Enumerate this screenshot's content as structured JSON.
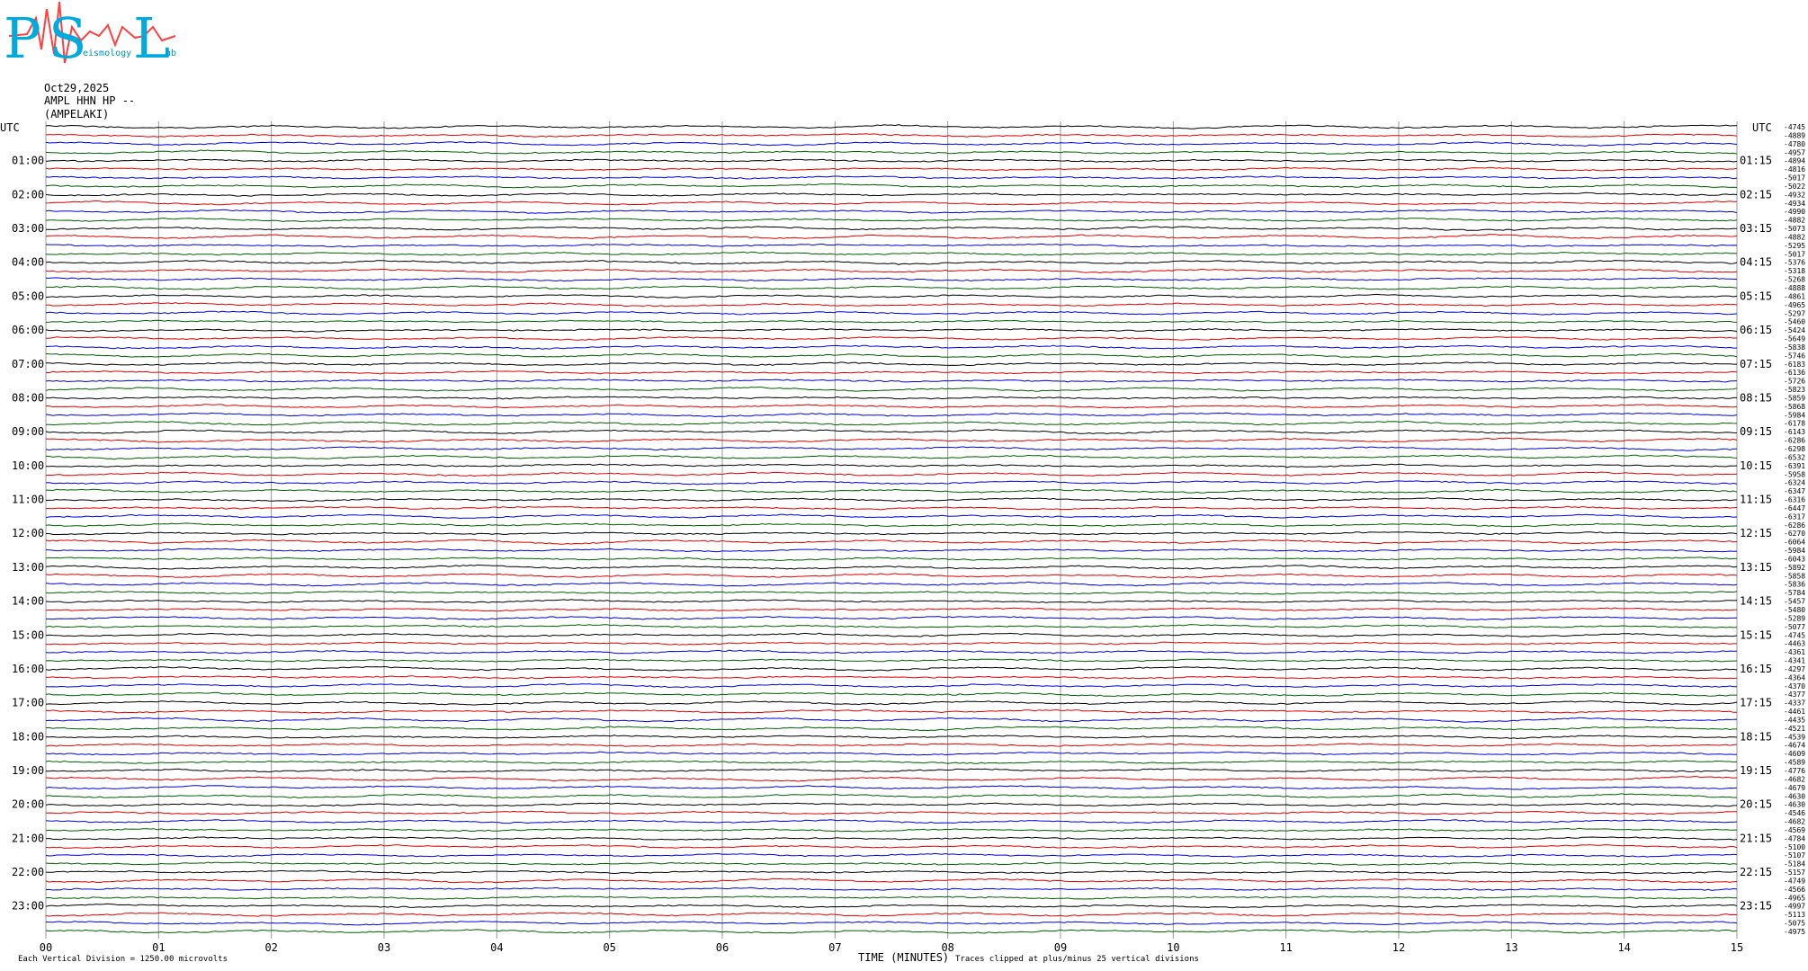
{
  "logo": {
    "letters": [
      "P",
      "S",
      "L"
    ],
    "words": [
      "eismology",
      "ab"
    ]
  },
  "header": {
    "date": "Oct29,2025",
    "station": "AMPL HHN HP --",
    "site": "(AMPELAKI)"
  },
  "utc_left": "UTC",
  "utc_right": "UTC",
  "left_labels": [
    "01:00",
    "02:00",
    "03:00",
    "04:00",
    "05:00",
    "06:00",
    "07:00",
    "08:00",
    "09:00",
    "10:00",
    "11:00",
    "12:00",
    "13:00",
    "14:00",
    "15:00",
    "16:00",
    "17:00",
    "18:00",
    "19:00",
    "20:00",
    "21:00",
    "22:00",
    "23:00"
  ],
  "right_labels": [
    "01:15",
    "02:15",
    "03:15",
    "04:15",
    "05:15",
    "06:15",
    "07:15",
    "08:15",
    "09:15",
    "10:15",
    "11:15",
    "12:15",
    "13:15",
    "14:15",
    "15:15",
    "16:15",
    "17:15",
    "18:15",
    "19:15",
    "20:15",
    "21:15",
    "22:15",
    "23:15"
  ],
  "trace_colors": [
    "#000000",
    "#e00000",
    "#0000e0",
    "#006000"
  ],
  "offsets": [
    -4745,
    -4889,
    -4780,
    -4957,
    -4894,
    -4816,
    -5017,
    -5022,
    -4932,
    -4934,
    -4990,
    -4882,
    -5073,
    -4882,
    -5295,
    -5017,
    -5376,
    -5318,
    -5268,
    -4888,
    -4861,
    -4965,
    -5297,
    -5460,
    -5424,
    -5649,
    -5838,
    -5746,
    -6183,
    -6136,
    -5726,
    -5823,
    -5859,
    -5868,
    -5984,
    -6178,
    -6143,
    -6286,
    -6298,
    -6532,
    -6391,
    -5958,
    -6324,
    -6347,
    -6316,
    -6447,
    -6317,
    -6286,
    -6270,
    -6064,
    -5984,
    -6043,
    -5892,
    -5858,
    -5836,
    -5784,
    -5457,
    -5480,
    -5289,
    -5077,
    -4745,
    -4463,
    -4361,
    -4341,
    -4297,
    -4364,
    -4370,
    -4377,
    -4337,
    -4461,
    -4435,
    -4521,
    -4539,
    -4674,
    -4609,
    -4589,
    -4776,
    -4682,
    -4679,
    -4630,
    -4630,
    -4546,
    -4682,
    -4569,
    -4784,
    -5100,
    -5107,
    -5184,
    -5157,
    -4749,
    -4566,
    -4965,
    -4997,
    -5113,
    -5075,
    -4975
  ],
  "x_ticks": [
    "00",
    "01",
    "02",
    "03",
    "04",
    "05",
    "06",
    "07",
    "08",
    "09",
    "10",
    "11",
    "12",
    "13",
    "14",
    "15"
  ],
  "footer": {
    "division": "Each Vertical Division = 1250.00 microvolts",
    "x_title": "TIME (MINUTES)",
    "clip": "Traces clipped at plus/minus 25 vertical divisions"
  }
}
